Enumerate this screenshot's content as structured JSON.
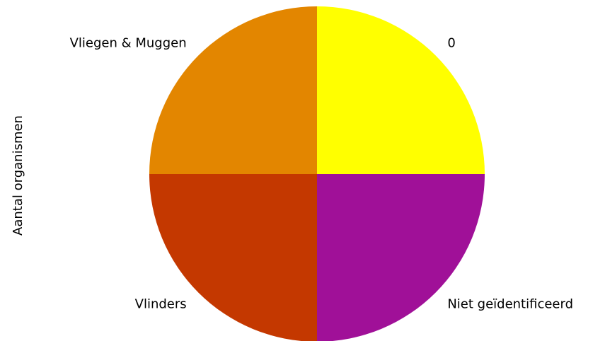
{
  "chart_data": {
    "type": "pie",
    "categories": [
      "0",
      "Vliegen & Muggen",
      "Vlinders",
      "Niet geïdentificeerd"
    ],
    "values": [
      1,
      1,
      1,
      1
    ],
    "colors": [
      "#ffff00",
      "#e38600",
      "#c43800",
      "#a01098"
    ],
    "ylabel": "Aantal organismen",
    "start_angle": 0,
    "direction": "counterclockwise",
    "legend": "none"
  }
}
